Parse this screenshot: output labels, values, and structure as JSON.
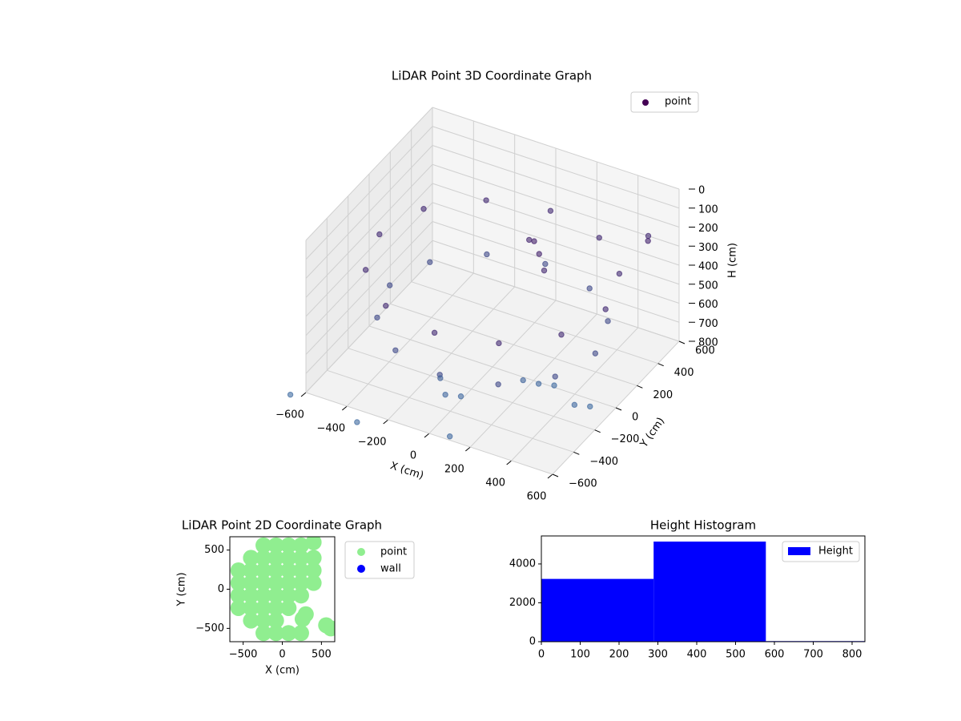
{
  "chart_data": [
    {
      "type": "scatter3d",
      "title": "LiDAR Point 3D Coordinate Graph",
      "xlabel": "X (cm)",
      "ylabel": "Y (cm)",
      "zlabel": "H (cm)",
      "xlim": [
        -600,
        600
      ],
      "ylim": [
        -600,
        600
      ],
      "zlim": [
        0,
        800
      ],
      "z_inverted": true,
      "xticks": [
        {
          "value": -600,
          "label": "−600"
        },
        {
          "value": -400,
          "label": "−400"
        },
        {
          "value": -200,
          "label": "−200"
        },
        0,
        200,
        400,
        600
      ],
      "yticks": [
        {
          "value": -600,
          "label": "−600"
        },
        {
          "value": -400,
          "label": "−400"
        },
        {
          "value": -200,
          "label": "−200"
        },
        0,
        200,
        400,
        600
      ],
      "zticks": [
        0,
        100,
        200,
        300,
        400,
        500,
        600,
        700,
        800
      ],
      "grid": true,
      "legend": "upper right",
      "color_range": [
        "#440154",
        "#3d6aa0"
      ],
      "series": [
        {
          "name": "point",
          "color": "#440154",
          "x": [
            550,
            476,
            275,
            0,
            -275,
            -476,
            -550,
            -476,
            -275,
            0,
            275,
            476,
            500,
            433,
            250,
            0,
            -250,
            -433,
            -500,
            -433,
            -250,
            0,
            250,
            433,
            100,
            150,
            50,
            200,
            -100,
            -50,
            0,
            200,
            250,
            300,
            450,
            500,
            -650,
            -300,
            100,
            450,
            500
          ],
          "y": [
            0,
            275,
            476,
            550,
            476,
            275,
            0,
            -275,
            -476,
            -550,
            -476,
            -275,
            0,
            250,
            433,
            500,
            433,
            250,
            0,
            -250,
            -433,
            -500,
            -433,
            -250,
            200,
            150,
            250,
            100,
            -300,
            -350,
            -300,
            -100,
            -50,
            0,
            -100,
            -50,
            -650,
            -700,
            -600,
            600,
            500
          ],
          "z": [
            300,
            300,
            300,
            300,
            300,
            300,
            300,
            300,
            300,
            300,
            300,
            300,
            550,
            550,
            550,
            550,
            550,
            550,
            550,
            550,
            550,
            550,
            550,
            550,
            220,
            240,
            260,
            280,
            720,
            760,
            780,
            740,
            770,
            790,
            780,
            800,
            800,
            790,
            780,
            300,
            250
          ]
        }
      ]
    },
    {
      "type": "scatter",
      "title": "LiDAR Point 2D Coordinate Graph",
      "xlabel": "X (cm)",
      "ylabel": "Y (cm)",
      "xlim": [
        -670,
        670
      ],
      "ylim": [
        -670,
        670
      ],
      "xticks": [
        {
          "value": -500,
          "label": "−500"
        },
        0,
        500
      ],
      "yticks": [
        {
          "value": -500,
          "label": "−500"
        },
        0,
        500
      ],
      "legend": "outside right",
      "series": [
        {
          "name": "point",
          "color": "#90ee90",
          "x": [
            -560,
            -560,
            -560,
            -560,
            -400,
            -400,
            -400,
            -400,
            -400,
            -400,
            -240,
            -240,
            -240,
            -240,
            -240,
            -240,
            -240,
            -240,
            -80,
            -80,
            -80,
            -80,
            -80,
            -80,
            -80,
            -80,
            80,
            80,
            80,
            80,
            80,
            80,
            80,
            240,
            240,
            240,
            240,
            240,
            240,
            400,
            400,
            400,
            400,
            560,
            620,
            260,
            300
          ],
          "y": [
            -240,
            -80,
            80,
            240,
            -400,
            -240,
            -80,
            80,
            240,
            400,
            -560,
            -400,
            -240,
            -80,
            80,
            240,
            400,
            560,
            -560,
            -400,
            -240,
            -80,
            80,
            240,
            400,
            560,
            -560,
            -240,
            -80,
            80,
            240,
            400,
            560,
            -560,
            -80,
            80,
            240,
            400,
            560,
            80,
            240,
            400,
            600,
            -460,
            -500,
            -380,
            -320
          ]
        },
        {
          "name": "wall",
          "color": "#0000ff",
          "x": [],
          "y": []
        }
      ]
    },
    {
      "type": "histogram",
      "title": "Height Histogram",
      "bins": [
        0,
        289,
        578,
        867
      ],
      "xlim": [
        0,
        833
      ],
      "ylim": [
        0,
        5440
      ],
      "xticks": [
        0,
        100,
        200,
        300,
        400,
        500,
        600,
        700,
        800
      ],
      "yticks": [
        0,
        2000,
        4000
      ],
      "legend": "upper right",
      "series": [
        {
          "name": "Height",
          "color": "#0000ff",
          "values": [
            3230,
            5150,
            30
          ]
        }
      ]
    }
  ]
}
